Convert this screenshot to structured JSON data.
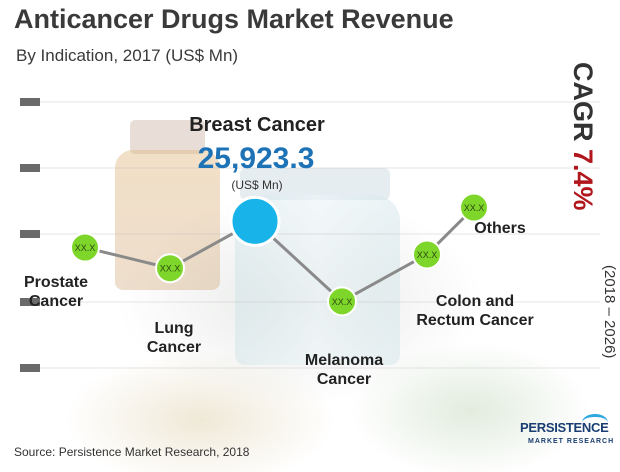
{
  "title": "Anticancer Drugs Market Revenue",
  "subtitle": "By Indication, 2017 (US$ Mn)",
  "cagr": {
    "label": "CAGR",
    "value": "7.4%",
    "period": "(2018 – 2026)"
  },
  "source": "Source: Persistence Market Research, 2018",
  "logo": {
    "line1": "PERSISTENCE",
    "line2": "MARKET RESEARCH"
  },
  "highlight": {
    "category": "Breast Cancer",
    "value_text": "25,923.3",
    "unit": "(US$ Mn)"
  },
  "colors": {
    "title": "#3a3a3a",
    "line": "#8a8a8a",
    "marker": "#7fd62a",
    "highlight_marker": "#18b4e9",
    "highlight_value": "#1e73b6",
    "cagr_value": "#b0161c",
    "side_bars": "#6a6a6a"
  },
  "chart_data": {
    "type": "line",
    "title": "Anticancer Drugs Market Revenue",
    "subtitle": "By Indication, 2017 (US$ Mn)",
    "categories": [
      "Prostate Cancer",
      "Lung Cancer",
      "Breast Cancer",
      "Melanoma Cancer",
      "Colon and Rectum Cancer",
      "Others"
    ],
    "value_labels": [
      "XX.X",
      "XX.X",
      "25,923.3",
      "XX.X",
      "XX.X",
      "XX.X"
    ],
    "relative_level": [
      0.67,
      0.52,
      0.86,
      0.28,
      0.62,
      0.96
    ],
    "highlighted": "Breast Cancer",
    "unit": "US$ Mn",
    "grid": false,
    "legend": "none"
  }
}
